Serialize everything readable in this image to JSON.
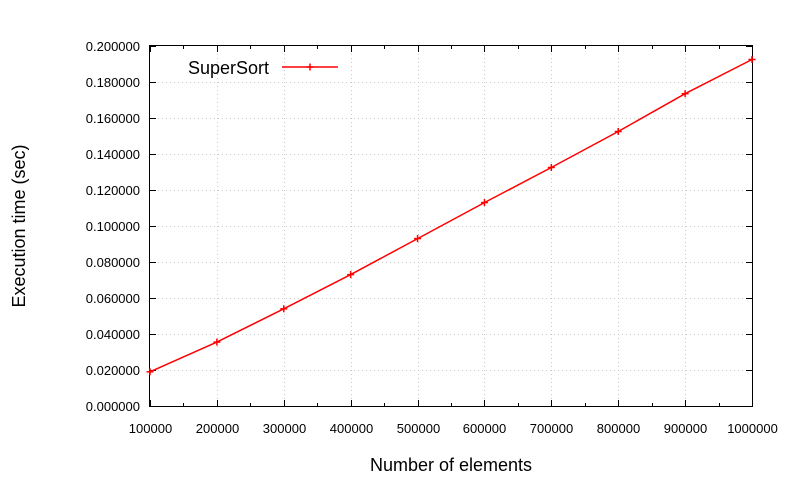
{
  "chart_data": {
    "type": "line",
    "title": "",
    "xlabel": "Number of elements",
    "ylabel": "Execution time (sec)",
    "xlim": [
      100000,
      1000000
    ],
    "ylim": [
      0,
      0.2
    ],
    "grid": true,
    "legend_position": "top-left",
    "x_ticks": [
      "100000",
      "200000",
      "300000",
      "400000",
      "500000",
      "600000",
      "700000",
      "800000",
      "900000",
      "1000000"
    ],
    "y_ticks": [
      "0.000000",
      "0.020000",
      "0.040000",
      "0.060000",
      "0.080000",
      "0.100000",
      "0.120000",
      "0.140000",
      "0.160000",
      "0.180000",
      "0.200000"
    ],
    "x": [
      100000,
      200000,
      300000,
      400000,
      500000,
      600000,
      700000,
      800000,
      900000,
      1000000
    ],
    "series": [
      {
        "name": "SuperSort",
        "color": "#ff0000",
        "marker": "plus",
        "values": [
          0.019,
          0.0355,
          0.054,
          0.073,
          0.093,
          0.113,
          0.1325,
          0.1525,
          0.1735,
          0.1925
        ]
      }
    ]
  }
}
